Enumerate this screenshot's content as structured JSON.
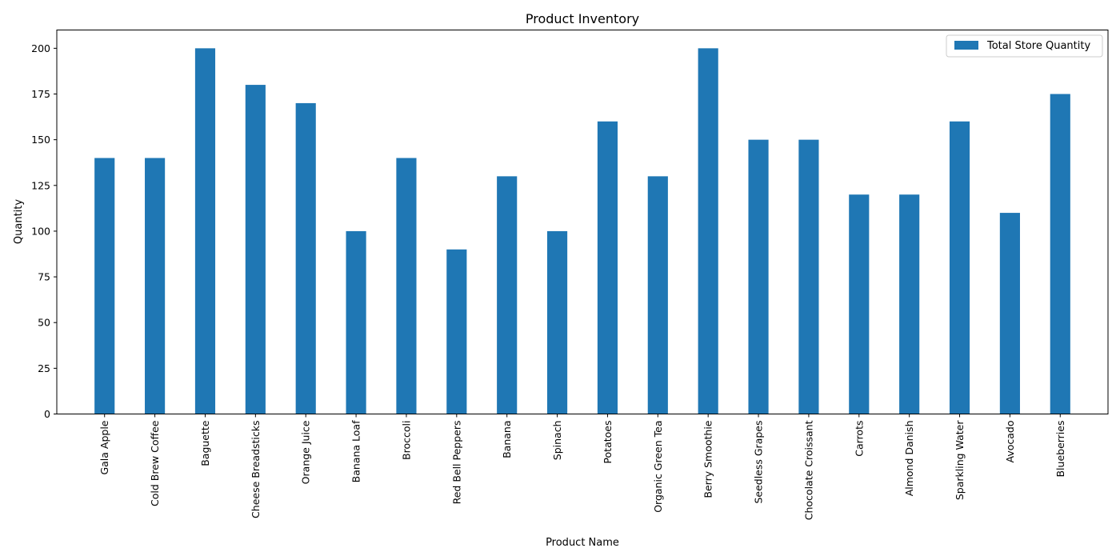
{
  "chart_data": {
    "type": "bar",
    "title": "Product Inventory",
    "xlabel": "Product Name",
    "ylabel": "Quantity",
    "ylim": [
      0,
      210
    ],
    "yticks": [
      0,
      25,
      50,
      75,
      100,
      125,
      150,
      175,
      200
    ],
    "grid": false,
    "legend_position": "top-right",
    "categories": [
      "Gala Apple",
      "Cold Brew Coffee",
      "Baguette",
      "Cheese Breadsticks",
      "Orange Juice",
      "Banana Loaf",
      "Broccoli",
      "Red Bell Peppers",
      "Banana",
      "Spinach",
      "Potatoes",
      "Organic Green Tea",
      "Berry Smoothie",
      "Seedless Grapes",
      "Chocolate Croissant",
      "Carrots",
      "Almond Danish",
      "Sparkling Water",
      "Avocado",
      "Blueberries"
    ],
    "series": [
      {
        "name": "Total Store Quantity",
        "color": "#1f77b4",
        "values": [
          140,
          140,
          200,
          180,
          170,
          100,
          140,
          90,
          130,
          100,
          160,
          130,
          200,
          150,
          150,
          120,
          120,
          160,
          110,
          175
        ]
      }
    ]
  }
}
